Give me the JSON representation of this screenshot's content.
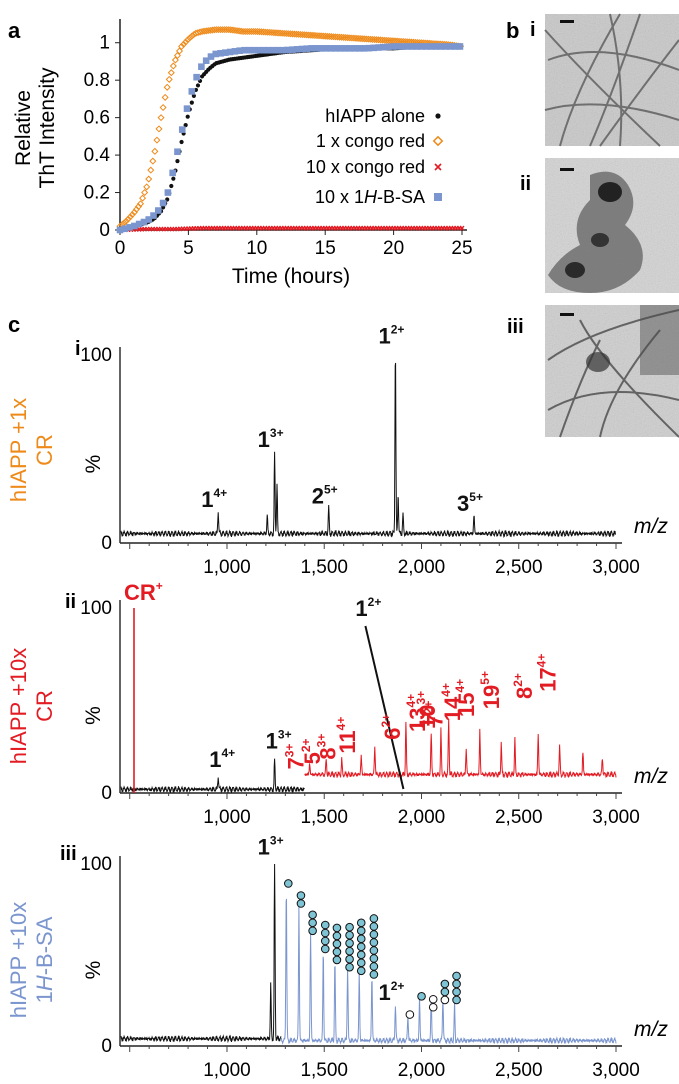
{
  "panel_labels": {
    "a": "a",
    "b": "b",
    "c": "c"
  },
  "micrographs": [
    "i",
    "ii",
    "iii"
  ],
  "chart_data": [
    {
      "id": "tht_kinetics",
      "type": "scatter",
      "xlabel": "Time (hours)",
      "ylabel_line1": "Relative",
      "ylabel_line2": "ThT Intensity",
      "xlim": [
        0,
        25
      ],
      "ylim": [
        0,
        1.1
      ],
      "x_ticks": [
        "0",
        "5",
        "10",
        "15",
        "20",
        "25"
      ],
      "y_ticks": [
        "0",
        "0.2",
        "0.4",
        "0.6",
        "0.8",
        "1"
      ],
      "legend_position": "right",
      "series": [
        {
          "name": "hIAPP alone",
          "color": "#111111",
          "marker": "dot",
          "x": [
            0,
            0.5,
            1,
            1.5,
            2,
            2.5,
            3,
            3.5,
            4,
            4.5,
            5,
            5.5,
            6,
            6.5,
            7,
            8,
            9,
            10,
            12,
            14,
            16,
            18,
            20,
            22,
            24,
            25
          ],
          "y": [
            0,
            0.01,
            0.02,
            0.03,
            0.04,
            0.06,
            0.1,
            0.17,
            0.3,
            0.47,
            0.62,
            0.74,
            0.82,
            0.86,
            0.89,
            0.91,
            0.92,
            0.93,
            0.95,
            0.96,
            0.97,
            0.97,
            0.97,
            0.98,
            0.98,
            0.98
          ]
        },
        {
          "name": "1 x congo red",
          "color": "#ee8a1a",
          "marker": "diamond",
          "x": [
            0,
            0.5,
            1,
            1.5,
            2,
            2.5,
            3,
            3.5,
            4,
            4.5,
            5,
            5.5,
            6,
            7,
            8,
            9,
            10,
            12,
            14,
            16,
            18,
            20,
            22,
            24,
            25
          ],
          "y": [
            0.02,
            0.05,
            0.09,
            0.14,
            0.24,
            0.4,
            0.6,
            0.78,
            0.9,
            0.98,
            1.02,
            1.05,
            1.06,
            1.07,
            1.07,
            1.06,
            1.06,
            1.05,
            1.04,
            1.03,
            1.02,
            1.01,
            1.0,
            0.99,
            0.98
          ]
        },
        {
          "name": "10 x congo red",
          "color": "#e31b23",
          "marker": "x",
          "x": [
            0,
            2,
            4,
            6,
            8,
            10,
            12,
            14,
            16,
            18,
            20,
            22,
            24,
            25
          ],
          "y": [
            0,
            0.005,
            0.005,
            0.01,
            0.01,
            0.01,
            0.01,
            0.01,
            0.01,
            0.01,
            0.01,
            0.01,
            0.01,
            0.01
          ]
        },
        {
          "name_prefix": "10 x 1",
          "name_italic": "H",
          "name_suffix": "-B-SA",
          "color": "#7b96cf",
          "marker": "square",
          "x": [
            0,
            1,
            2,
            2.5,
            3,
            3.5,
            4,
            4.5,
            5,
            5.5,
            6,
            6.5,
            7,
            8,
            9,
            10,
            12,
            14,
            16,
            18,
            20,
            22,
            24,
            25
          ],
          "y": [
            0,
            0.02,
            0.05,
            0.08,
            0.12,
            0.2,
            0.35,
            0.52,
            0.68,
            0.8,
            0.88,
            0.92,
            0.94,
            0.95,
            0.96,
            0.96,
            0.96,
            0.97,
            0.97,
            0.97,
            0.98,
            0.98,
            0.98,
            0.98
          ]
        }
      ]
    },
    {
      "id": "ms_i",
      "type": "line",
      "panel": "i",
      "side_label_line1": "hIAPP +1x",
      "side_label_line2": "CR",
      "side_color": "#ee8a1a",
      "ylabel": "%",
      "xlabel": "m/z",
      "xlim": [
        450,
        3000
      ],
      "ylim": [
        0,
        100
      ],
      "x_ticks": [
        "1,000",
        "1,500",
        "2,000",
        "2,500",
        "3,000"
      ],
      "y_ticks": [
        "0",
        "100"
      ],
      "peaks_black": [
        {
          "mz": 955,
          "h": 12
        },
        {
          "mz": 1207,
          "h": 10
        },
        {
          "mz": 1245,
          "h": 43
        },
        {
          "mz": 1257,
          "h": 26
        },
        {
          "mz": 1523,
          "h": 14
        },
        {
          "mz": 1866,
          "h": 100
        },
        {
          "mz": 1880,
          "h": 22
        },
        {
          "mz": 1905,
          "h": 10
        },
        {
          "mz": 2270,
          "h": 10
        }
      ],
      "annotations": [
        {
          "num": "1",
          "charge": "4+",
          "mz": 955,
          "h": 17
        },
        {
          "num": "1",
          "charge": "3+",
          "mz": 1245,
          "h": 49
        },
        {
          "num": "2",
          "charge": "5+",
          "mz": 1523,
          "h": 19
        },
        {
          "num": "1",
          "charge": "2+",
          "mz": 1866,
          "h": 104
        },
        {
          "num": "3",
          "charge": "5+",
          "mz": 2270,
          "h": 15
        }
      ]
    },
    {
      "id": "ms_ii",
      "type": "line",
      "panel": "ii",
      "side_label_line1": "hIAPP +10x",
      "side_label_line2": "CR",
      "side_color": "#e31b23",
      "ylabel": "%",
      "xlabel": "m/z",
      "xlim": [
        450,
        3000
      ],
      "ylim": [
        0,
        100
      ],
      "x_ticks": [
        "1,000",
        "1,500",
        "2,000",
        "2,500",
        "3,000"
      ],
      "y_ticks": [
        "0",
        "100"
      ],
      "cr_label": "CR",
      "cr_sup": "+",
      "peaks_black": [
        {
          "mz": 955,
          "h": 7
        },
        {
          "mz": 1245,
          "h": 16
        },
        {
          "mz": 1866,
          "h": 18
        }
      ],
      "peaks_red": [
        {
          "mz": 522,
          "h": 100
        },
        {
          "mz": 1425,
          "h": 6
        },
        {
          "mz": 1510,
          "h": 8
        },
        {
          "mz": 1590,
          "h": 8
        },
        {
          "mz": 1690,
          "h": 10
        },
        {
          "mz": 1760,
          "h": 15
        },
        {
          "mz": 1920,
          "h": 28
        },
        {
          "mz": 2050,
          "h": 22
        },
        {
          "mz": 2100,
          "h": 24
        },
        {
          "mz": 2140,
          "h": 30
        },
        {
          "mz": 2230,
          "h": 14
        },
        {
          "mz": 2300,
          "h": 24
        },
        {
          "mz": 2410,
          "h": 18
        },
        {
          "mz": 2480,
          "h": 20
        },
        {
          "mz": 2600,
          "h": 22
        },
        {
          "mz": 2710,
          "h": 15
        },
        {
          "mz": 2830,
          "h": 12
        },
        {
          "mz": 2930,
          "h": 9
        }
      ],
      "annotations_black": [
        {
          "num": "1",
          "charge": "4+",
          "mz": 955,
          "h": 12
        },
        {
          "num": "1",
          "charge": "3+",
          "mz": 1245,
          "h": 22
        }
      ],
      "annotation_12": {
        "num": "1",
        "charge": "2+"
      },
      "annotations_red": [
        {
          "num": "7",
          "charge": "3+",
          "mz": 1425
        },
        {
          "num": "5",
          "charge": "2+",
          "mz": 1510
        },
        {
          "num": "8",
          "charge": "3+",
          "mz": 1590
        },
        {
          "num": "11",
          "charge": "4+",
          "mz": 1690
        },
        {
          "num": "6",
          "charge": "2+",
          "mz": 1920
        },
        {
          "num": "13",
          "charge": "4+",
          "mz": 2050
        },
        {
          "num": "10",
          "charge": "3+",
          "mz": 2100
        },
        {
          "num": "14",
          "charge": "4+",
          "mz": 2230
        },
        {
          "num": "7",
          "charge": "2+",
          "mz": 2140
        },
        {
          "num": "15",
          "charge": "4+",
          "mz": 2300
        },
        {
          "num": "19",
          "charge": "5+",
          "mz": 2430
        },
        {
          "num": "8",
          "charge": "2+",
          "mz": 2600
        },
        {
          "num": "17",
          "charge": "4+",
          "mz": 2720
        }
      ]
    },
    {
      "id": "ms_iii",
      "type": "line",
      "panel": "iii",
      "side_label_line1": "hIAPP +10x",
      "side_label_italic": "H",
      "side_label_prefix": "1",
      "side_label_suffix": "-B-SA",
      "side_color": "#7b96cf",
      "ylabel": "%",
      "xlabel": "m/z",
      "xlim": [
        450,
        3000
      ],
      "ylim": [
        0,
        100
      ],
      "x_ticks": [
        "1,000",
        "1,500",
        "2,000",
        "2,500",
        "3,000"
      ],
      "y_ticks": [
        "0",
        "100"
      ],
      "peaks_black": [
        {
          "mz": 1225,
          "h": 30
        },
        {
          "mz": 1245,
          "h": 100
        },
        {
          "mz": 1866,
          "h": 20
        }
      ],
      "peaks_blue": [
        {
          "mz": 1305,
          "h": 86
        },
        {
          "mz": 1370,
          "h": 75
        },
        {
          "mz": 1430,
          "h": 60
        },
        {
          "mz": 1495,
          "h": 50
        },
        {
          "mz": 1555,
          "h": 44
        },
        {
          "mz": 1620,
          "h": 40
        },
        {
          "mz": 1680,
          "h": 38
        },
        {
          "mz": 1745,
          "h": 36
        },
        {
          "mz": 1930,
          "h": 14
        },
        {
          "mz": 1990,
          "h": 24
        },
        {
          "mz": 2050,
          "h": 22
        },
        {
          "mz": 2110,
          "h": 24
        },
        {
          "mz": 2170,
          "h": 20
        }
      ],
      "annotations": [
        {
          "num": "1",
          "charge": "3+",
          "mz": 1245,
          "h": 103
        },
        {
          "num": "1",
          "charge": "2+",
          "mz": 1866,
          "h": 23
        }
      ],
      "bead_stacks": [
        {
          "mz": 1305,
          "n": 1,
          "h": 86
        },
        {
          "mz": 1370,
          "n": 2,
          "h": 75
        },
        {
          "mz": 1430,
          "n": 3,
          "h": 60
        },
        {
          "mz": 1495,
          "n": 4,
          "h": 50
        },
        {
          "mz": 1555,
          "n": 5,
          "h": 44
        },
        {
          "mz": 1620,
          "n": 6,
          "h": 40
        },
        {
          "mz": 1680,
          "n": 7,
          "h": 38
        },
        {
          "mz": 1745,
          "n": 8,
          "h": 36
        },
        {
          "mz": 1930,
          "n": 1,
          "h": 14,
          "open": 1
        },
        {
          "mz": 1990,
          "n": 1,
          "h": 24
        },
        {
          "mz": 2050,
          "n": 2,
          "h": 18,
          "open": 2
        },
        {
          "mz": 2110,
          "n": 3,
          "h": 22,
          "open": 1
        },
        {
          "mz": 2170,
          "n": 4,
          "h": 22
        }
      ]
    }
  ]
}
